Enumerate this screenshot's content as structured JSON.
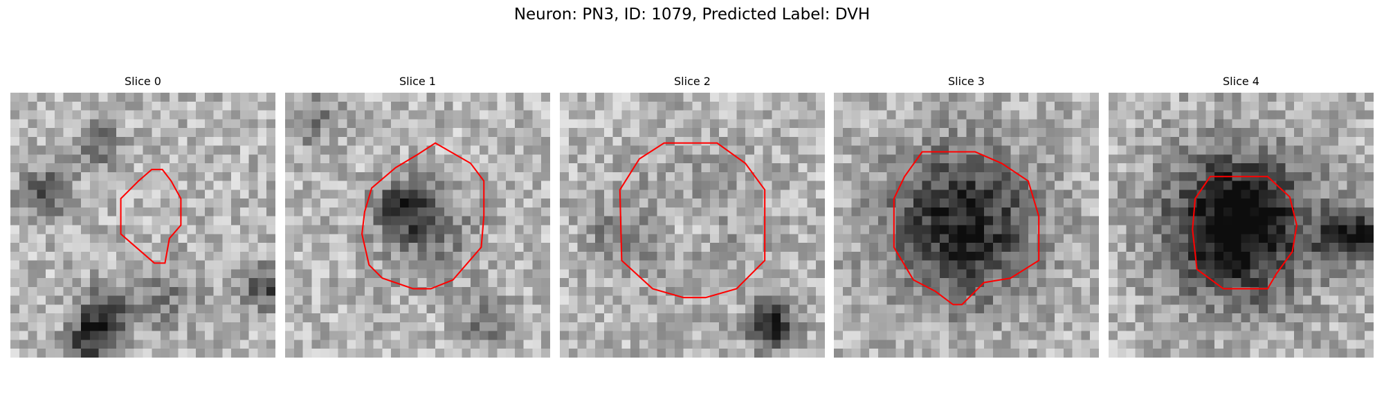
{
  "header": {
    "title": "Neuron: PN3, ID: 1079, Predicted Label: DVH"
  },
  "panels": [
    {
      "title": "Slice 0"
    },
    {
      "title": "Slice 1"
    },
    {
      "title": "Slice 2"
    },
    {
      "title": "Slice 3"
    },
    {
      "title": "Slice 4"
    }
  ]
}
